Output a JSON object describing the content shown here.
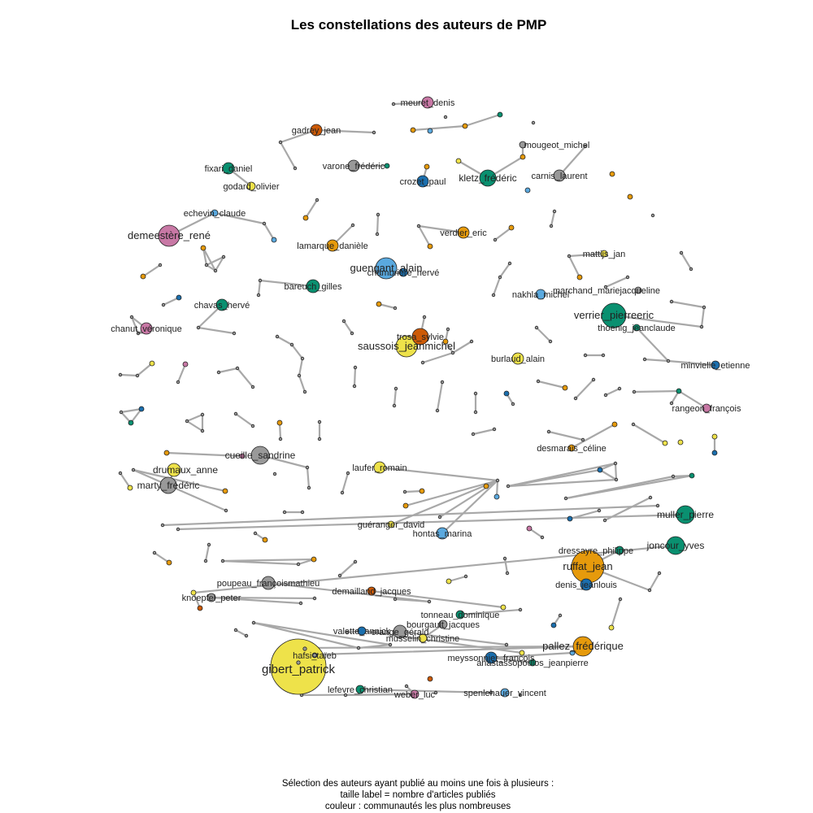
{
  "title": "Les constellations des auteurs de PMP",
  "caption": [
    "Sélection des auteurs ayant publié au moins une fois à plusieurs :",
    "taille label  = nombre d'articles publiés",
    "couleur : communautés les plus nombreuses"
  ],
  "colors": {
    "green": "#0a9070",
    "orange": "#e69a0c",
    "rust": "#cc5a07",
    "blue": "#1b6fae",
    "sky": "#5aa9df",
    "pink": "#c878a5",
    "yellow": "#eee24a",
    "gray": "#999999",
    "edge": "#a8a8a8"
  },
  "nodes": [
    {
      "id": "gibert_patrick",
      "label": "gibert_patrick",
      "size": 34,
      "color": "yellow"
    },
    {
      "id": "ruffat_jean",
      "label": "ruffat_jean",
      "size": 20,
      "color": "orange"
    },
    {
      "id": "demeestere_rene",
      "label": "demeestère_rené",
      "size": 13,
      "color": "pink"
    },
    {
      "id": "verrier_pierreeric",
      "label": "verrier_pierreeric",
      "size": 15,
      "color": "green"
    },
    {
      "id": "saussois_jeanmichel",
      "label": "saussois_jeanmichel",
      "size": 13,
      "color": "yellow"
    },
    {
      "id": "guengant_alain",
      "label": "guengant_alain",
      "size": 13,
      "color": "sky"
    },
    {
      "id": "pallez_frederique",
      "label": "pallez_frédérique",
      "size": 12,
      "color": "orange"
    },
    {
      "id": "kletz_frederic",
      "label": "kletz_frédéric",
      "size": 10,
      "color": "green"
    },
    {
      "id": "muller_pierre",
      "label": "muller_pierre",
      "size": 11,
      "color": "green"
    },
    {
      "id": "joncour_yves",
      "label": "joncour_yves",
      "size": 11,
      "color": "green"
    },
    {
      "id": "trosa_sylvie",
      "label": "trosa_sylvie",
      "size": 10,
      "color": "rust"
    },
    {
      "id": "cueille_sandrine",
      "label": "cueille_sandrine",
      "size": 11,
      "color": "gray"
    },
    {
      "id": "marty_frederic",
      "label": "marty_frédéric",
      "size": 10,
      "color": "gray"
    },
    {
      "id": "drumaux_anne",
      "label": "drumaux_anne",
      "size": 8,
      "color": "yellow"
    },
    {
      "id": "meuret_denis",
      "label": "meuret_denis",
      "size": 7,
      "color": "pink"
    },
    {
      "id": "gadrey_jean",
      "label": "gadrey_jean",
      "size": 7,
      "color": "rust"
    },
    {
      "id": "varone_frederic",
      "label": "varone_frédéric",
      "size": 7,
      "color": "gray"
    },
    {
      "id": "crozet_paul",
      "label": "crozet_paul",
      "size": 7,
      "color": "blue"
    },
    {
      "id": "carnis_laurent",
      "label": "carnis_laurent",
      "size": 7,
      "color": "gray"
    },
    {
      "id": "mougeot_michel",
      "label": "mougeot_michel",
      "size": 4,
      "color": "gray"
    },
    {
      "id": "fixari_daniel",
      "label": "fixari_daniel",
      "size": 7,
      "color": "green"
    },
    {
      "id": "godard_olivier",
      "label": "godard_olivier",
      "size": 5,
      "color": "yellow"
    },
    {
      "id": "echevin_claude",
      "label": "echevin_claude",
      "size": 4,
      "color": "sky"
    },
    {
      "id": "lamarque_daniele",
      "label": "lamarque_danièle",
      "size": 7,
      "color": "orange"
    },
    {
      "id": "chambriere_herve",
      "label": "chambrière_hervé",
      "size": 5,
      "color": "blue"
    },
    {
      "id": "verdier_eric",
      "label": "verdier_eric",
      "size": 7,
      "color": "orange"
    },
    {
      "id": "mattijs_jan",
      "label": "mattijs_jan",
      "size": 4,
      "color": "yellow"
    },
    {
      "id": "bareuch_gilles",
      "label": "bareuch_gilles",
      "size": 8,
      "color": "green"
    },
    {
      "id": "chavas_herve",
      "label": "chavas_hervé",
      "size": 7,
      "color": "green"
    },
    {
      "id": "chanut_veronique",
      "label": "chanut_véronique",
      "size": 7,
      "color": "pink"
    },
    {
      "id": "nakhla_michel",
      "label": "nakhla_michel",
      "size": 6,
      "color": "sky"
    },
    {
      "id": "marchand_mariejacqueline",
      "label": "marchand_mariejacqueline",
      "size": 4,
      "color": "gray"
    },
    {
      "id": "thoenig_jeanclaude",
      "label": "thoenig_jeanclaude",
      "size": 4,
      "color": "green"
    },
    {
      "id": "burlaud_alain",
      "label": "burlaud_alain",
      "size": 7,
      "color": "yellow"
    },
    {
      "id": "minvielle_etienne",
      "label": "minvielle_etienne",
      "size": 5,
      "color": "blue"
    },
    {
      "id": "rangeon_francois",
      "label": "rangeon_françois",
      "size": 5,
      "color": "pink"
    },
    {
      "id": "desmarais_celine",
      "label": "desmarais_céline",
      "size": 4,
      "color": "orange"
    },
    {
      "id": "laufer_romain",
      "label": "laufer_romain",
      "size": 7,
      "color": "yellow"
    },
    {
      "id": "gueranger_david",
      "label": "guéranger_david",
      "size": 4,
      "color": "yellow"
    },
    {
      "id": "hontas_marina",
      "label": "hontas_marina",
      "size": 7,
      "color": "sky"
    },
    {
      "id": "dressayre_philippe",
      "label": "dressayre_philippe",
      "size": 5,
      "color": "green"
    },
    {
      "id": "denis_jeanlouis",
      "label": "denis_jeanlouis",
      "size": 7,
      "color": "blue"
    },
    {
      "id": "poupeau_francoismathieu",
      "label": "poupeau_françoismathieu",
      "size": 8,
      "color": "gray"
    },
    {
      "id": "knoepfel_peter",
      "label": "knoepfel_peter",
      "size": 5,
      "color": "gray"
    },
    {
      "id": "demailland_jacques",
      "label": "demailland_jacques",
      "size": 5,
      "color": "rust"
    },
    {
      "id": "tonneau_dominique",
      "label": "tonneau_dominique",
      "size": 5,
      "color": "green"
    },
    {
      "id": "bourgault_jacques",
      "label": "bourgault_jacques",
      "size": 5,
      "color": "gray"
    },
    {
      "id": "valette_annick",
      "label": "valette_annick",
      "size": 5,
      "color": "blue"
    },
    {
      "id": "orange_gerald",
      "label": "orange_gérald",
      "size": 8,
      "color": "gray"
    },
    {
      "id": "musselin_christine",
      "label": "musselin_christine",
      "size": 5,
      "color": "yellow"
    },
    {
      "id": "meyssonnier_francois",
      "label": "meyssonnier_françois",
      "size": 7,
      "color": "blue"
    },
    {
      "id": "anastassopoulos_jeanpierre",
      "label": "anastassopoulos_jeanpierre",
      "size": 4,
      "color": "green"
    },
    {
      "id": "spenlehauer_vincent",
      "label": "spenlehauer_vincent",
      "size": 5,
      "color": "sky"
    },
    {
      "id": "lefevre_christian",
      "label": "lefevre_christian",
      "size": 5,
      "color": "green"
    },
    {
      "id": "weber_luc",
      "label": "weber_luc",
      "size": 5,
      "color": "pink"
    },
    {
      "id": "hafsi_taieb",
      "label": "hafsi_taïeb",
      "size": 3,
      "color": "sky"
    }
  ]
}
